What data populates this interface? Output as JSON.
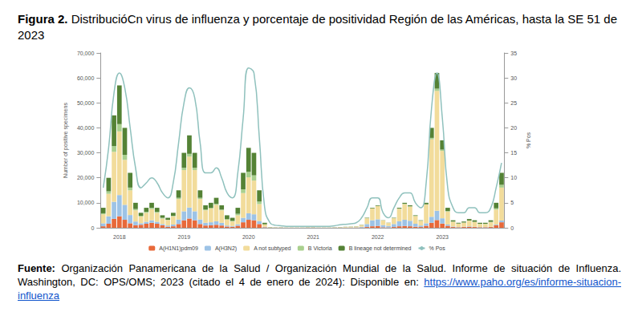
{
  "figure": {
    "label": "Figura 2.",
    "title": "DistribucióCn virus de influenza y porcentaje de positividad Región de las Américas, hasta la SE 51 de 2023"
  },
  "chart_data": {
    "type": "bar",
    "stacked": true,
    "grid": false,
    "legend": "bottom",
    "ylabel": "Number of positive specimens",
    "y2label": "% Pos",
    "ylim": [
      0,
      70000
    ],
    "yticks": [
      0,
      10000,
      20000,
      30000,
      40000,
      50000,
      60000,
      70000
    ],
    "y2lim": [
      0,
      35
    ],
    "y2ticks": [
      0,
      5,
      10,
      15,
      20,
      25,
      30,
      35
    ],
    "categories": [
      null,
      null,
      null,
      "2018",
      null,
      null,
      null,
      null,
      null,
      null,
      null,
      null,
      null,
      null,
      null,
      "2019",
      null,
      null,
      null,
      null,
      null,
      null,
      null,
      null,
      null,
      null,
      null,
      "2020",
      null,
      null,
      null,
      null,
      null,
      null,
      null,
      null,
      null,
      null,
      null,
      "2021",
      null,
      null,
      null,
      null,
      null,
      null,
      null,
      null,
      null,
      null,
      null,
      "2022",
      null,
      null,
      null,
      null,
      null,
      null,
      null,
      null,
      null,
      null,
      null,
      "2023",
      null,
      null,
      null,
      null,
      null,
      null,
      null,
      null,
      null,
      null,
      null
    ],
    "series": [
      {
        "name": "A(H1N1)pdm09",
        "type": "bar",
        "color": "#e8693a",
        "values": [
          600,
          1600,
          3600,
          4600,
          3200,
          1800,
          1000,
          1200,
          1600,
          2000,
          1600,
          1000,
          400,
          600,
          1500,
          3000,
          3700,
          3000,
          1500,
          900,
          1000,
          1200,
          900,
          500,
          400,
          800,
          2200,
          3200,
          3000,
          1500,
          200,
          30,
          20,
          20,
          10,
          10,
          10,
          10,
          20,
          20,
          10,
          10,
          10,
          20,
          30,
          40,
          60,
          70,
          100,
          300,
          600,
          700,
          200,
          150,
          300,
          600,
          700,
          600,
          400,
          300,
          800,
          2000,
          3100,
          1700,
          800,
          300,
          200,
          300,
          400,
          300,
          200,
          200,
          300,
          1000,
          2200
        ]
      },
      {
        "name": "A(H3N2)",
        "type": "bar",
        "color": "#9dc3e6",
        "values": [
          1200,
          3000,
          6800,
          8500,
          6000,
          3300,
          1500,
          600,
          800,
          1000,
          800,
          500,
          500,
          700,
          1800,
          3600,
          4400,
          3600,
          1800,
          1100,
          1200,
          1400,
          1100,
          400,
          300,
          600,
          1800,
          2600,
          2400,
          1200,
          200,
          30,
          20,
          20,
          20,
          20,
          20,
          20,
          20,
          20,
          20,
          20,
          20,
          20,
          40,
          60,
          80,
          100,
          300,
          1200,
          2400,
          2700,
          900,
          600,
          1200,
          2000,
          2500,
          2200,
          1200,
          600,
          1000,
          2400,
          3700,
          2100,
          500,
          200,
          100,
          100,
          200,
          100,
          100,
          100,
          100,
          300,
          700
        ]
      },
      {
        "name": "A not subtyped",
        "type": "bar",
        "color": "#f2dc9b",
        "values": [
          3600,
          9000,
          20000,
          25500,
          18000,
          9900,
          4500,
          2700,
          3600,
          4500,
          3600,
          2200,
          2200,
          3300,
          8200,
          16500,
          20400,
          16500,
          8200,
          5000,
          5500,
          6600,
          5000,
          2300,
          1800,
          3600,
          9900,
          14400,
          13500,
          6800,
          900,
          150,
          100,
          100,
          80,
          80,
          80,
          80,
          100,
          100,
          80,
          80,
          80,
          100,
          170,
          220,
          280,
          340,
          700,
          2300,
          4700,
          5300,
          1800,
          1150,
          2300,
          5000,
          6300,
          5700,
          3100,
          1900,
          7500,
          31000,
          48000,
          27000,
          5200,
          1900,
          1300,
          1600,
          2200,
          1900,
          1200,
          1200,
          1800,
          6000,
          13200
        ]
      },
      {
        "name": "B Victoria",
        "type": "bar",
        "color": "#a9d08e",
        "values": [
          400,
          1000,
          2300,
          2900,
          2000,
          1100,
          500,
          300,
          400,
          500,
          400,
          300,
          100,
          200,
          500,
          900,
          1100,
          900,
          500,
          300,
          300,
          400,
          300,
          300,
          300,
          600,
          1500,
          2200,
          2100,
          1000,
          100,
          20,
          10,
          10,
          10,
          10,
          10,
          10,
          10,
          10,
          10,
          10,
          10,
          10,
          10,
          20,
          20,
          30,
          20,
          40,
          60,
          60,
          20,
          20,
          40,
          80,
          100,
          100,
          60,
          40,
          100,
          600,
          900,
          500,
          200,
          100,
          100,
          100,
          100,
          100,
          100,
          100,
          200,
          500,
          1100
        ]
      },
      {
        "name": "B lineage not determined",
        "type": "bar",
        "color": "#548235",
        "values": [
          2200,
          5400,
          12300,
          15500,
          10800,
          5900,
          2500,
          1200,
          1600,
          2000,
          1600,
          1000,
          800,
          1200,
          3000,
          6000,
          7400,
          6000,
          3000,
          1700,
          2000,
          2400,
          1700,
          1500,
          1200,
          2400,
          6600,
          9600,
          9000,
          4500,
          600,
          70,
          50,
          50,
          30,
          30,
          30,
          30,
          50,
          50,
          30,
          30,
          30,
          50,
          50,
          60,
          60,
          60,
          80,
          160,
          240,
          240,
          80,
          80,
          160,
          320,
          400,
          400,
          240,
          160,
          600,
          4000,
          6300,
          3700,
          1300,
          500,
          300,
          400,
          600,
          600,
          400,
          400,
          600,
          2200,
          4800
        ]
      },
      {
        "name": "% Pos",
        "type": "line",
        "axis": "y2",
        "color": "#8fc1bd",
        "values": [
          8,
          16,
          27,
          31,
          28,
          20,
          12,
          8,
          9,
          10,
          9,
          7,
          6,
          9,
          17,
          25,
          28,
          26,
          17,
          11,
          11,
          12,
          10,
          7,
          6,
          11,
          22,
          32,
          31,
          18,
          4,
          1,
          0.5,
          0.4,
          0.3,
          0.3,
          0.3,
          0.3,
          0.3,
          0.3,
          0.3,
          0.3,
          0.3,
          0.4,
          0.6,
          0.7,
          0.8,
          1,
          2,
          4,
          6,
          6,
          3,
          2,
          4,
          6,
          7,
          7,
          5,
          4,
          9,
          24,
          31,
          22,
          8,
          4,
          3,
          3,
          4,
          4,
          3,
          3,
          4,
          8,
          13
        ]
      }
    ]
  },
  "source": {
    "label": "Fuente:",
    "text": "Organización Panamericana de la Salud / Organización Mundial de la Salud. Informe de situación de Influenza. Washington, DC: OPS/OMS; 2023 (citado el 4 de enero de 2024): Disponible en:",
    "link": "https://www.paho.org/es/informe-situacion-influenza"
  }
}
